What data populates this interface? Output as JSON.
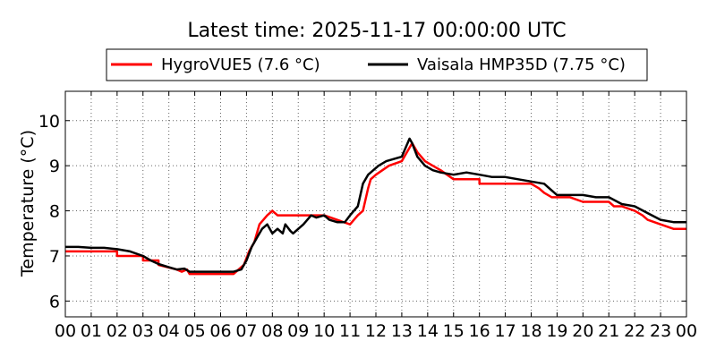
{
  "chart_data": {
    "type": "line",
    "title": "Latest time: 2025-11-17 00:00:00 UTC",
    "xlabel": "",
    "ylabel": "Temperature (°C)",
    "xlim": [
      0,
      24
    ],
    "ylim": [
      5.65,
      10.65
    ],
    "x_ticks": [
      "00",
      "01",
      "02",
      "03",
      "04",
      "05",
      "06",
      "07",
      "08",
      "09",
      "10",
      "11",
      "12",
      "13",
      "14",
      "15",
      "16",
      "17",
      "18",
      "19",
      "20",
      "21",
      "22",
      "23",
      "00"
    ],
    "y_ticks": [
      6,
      7,
      8,
      9,
      10
    ],
    "grid": true,
    "legend_placement": "top",
    "series": [
      {
        "name": "HygroVUE5 (7.6 °C)",
        "color": "#ff0000",
        "x": [
          0,
          2,
          2.0,
          3.0,
          3.0,
          3.6,
          3.6,
          4.3,
          4.5,
          4.7,
          4.8,
          6.5,
          6.9,
          7.1,
          7.3,
          7.5,
          7.8,
          8.0,
          8.2,
          8.5,
          9.0,
          9.5,
          10.0,
          10.5,
          11.0,
          11.3,
          11.5,
          11.7,
          11.8,
          12.0,
          12.5,
          13.0,
          13.2,
          13.4,
          13.6,
          13.9,
          14.2,
          14.5,
          15.0,
          15.5,
          15.5,
          16.0,
          16.0,
          17.0,
          17.4,
          18.0,
          18.3,
          18.5,
          18.8,
          19.0,
          19.5,
          20.0,
          21.0,
          21.2,
          21.5,
          22.0,
          22.3,
          22.5,
          23.0,
          23.5,
          24.0
        ],
        "y": [
          7.1,
          7.1,
          7.0,
          7.0,
          6.9,
          6.9,
          6.8,
          6.7,
          6.65,
          6.7,
          6.6,
          6.6,
          6.8,
          7.1,
          7.3,
          7.7,
          7.9,
          8.0,
          7.9,
          7.9,
          7.9,
          7.9,
          7.9,
          7.8,
          7.7,
          7.9,
          8.0,
          8.5,
          8.7,
          8.8,
          9.0,
          9.1,
          9.3,
          9.5,
          9.3,
          9.1,
          9.0,
          8.9,
          8.7,
          8.7,
          8.7,
          8.7,
          8.6,
          8.6,
          8.6,
          8.6,
          8.5,
          8.4,
          8.3,
          8.3,
          8.3,
          8.2,
          8.2,
          8.1,
          8.1,
          8.0,
          7.9,
          7.8,
          7.7,
          7.6,
          7.6
        ]
      },
      {
        "name": "Vaisala HMP35D (7.75 °C)",
        "color": "#000000",
        "x": [
          0,
          0.5,
          1.0,
          1.5,
          2.0,
          2.5,
          3.0,
          3.3,
          3.6,
          4.0,
          4.3,
          4.6,
          4.8,
          5.0,
          5.5,
          6.0,
          6.5,
          6.8,
          7.0,
          7.2,
          7.4,
          7.6,
          7.8,
          8.0,
          8.2,
          8.4,
          8.5,
          8.7,
          8.8,
          9.0,
          9.2,
          9.5,
          9.7,
          10.0,
          10.2,
          10.5,
          10.8,
          11.0,
          11.3,
          11.5,
          11.7,
          11.9,
          12.1,
          12.4,
          12.7,
          13.0,
          13.3,
          13.4,
          13.6,
          13.9,
          14.2,
          14.5,
          15.0,
          15.5,
          16.0,
          16.5,
          17.0,
          17.5,
          18.0,
          18.5,
          18.8,
          19.0,
          19.5,
          20.0,
          20.5,
          21.0,
          21.5,
          22.0,
          22.5,
          23.0,
          23.5,
          24.0
        ],
        "y": [
          7.2,
          7.2,
          7.18,
          7.18,
          7.15,
          7.1,
          7.0,
          6.9,
          6.82,
          6.75,
          6.7,
          6.72,
          6.65,
          6.65,
          6.65,
          6.65,
          6.65,
          6.7,
          6.9,
          7.2,
          7.4,
          7.6,
          7.7,
          7.5,
          7.6,
          7.5,
          7.7,
          7.55,
          7.5,
          7.6,
          7.7,
          7.9,
          7.85,
          7.9,
          7.8,
          7.75,
          7.75,
          7.9,
          8.1,
          8.6,
          8.8,
          8.9,
          9.0,
          9.1,
          9.15,
          9.2,
          9.6,
          9.5,
          9.2,
          9.0,
          8.9,
          8.85,
          8.8,
          8.85,
          8.8,
          8.75,
          8.75,
          8.7,
          8.65,
          8.6,
          8.45,
          8.35,
          8.35,
          8.35,
          8.3,
          8.3,
          8.15,
          8.1,
          7.95,
          7.8,
          7.75,
          7.75
        ]
      }
    ]
  }
}
